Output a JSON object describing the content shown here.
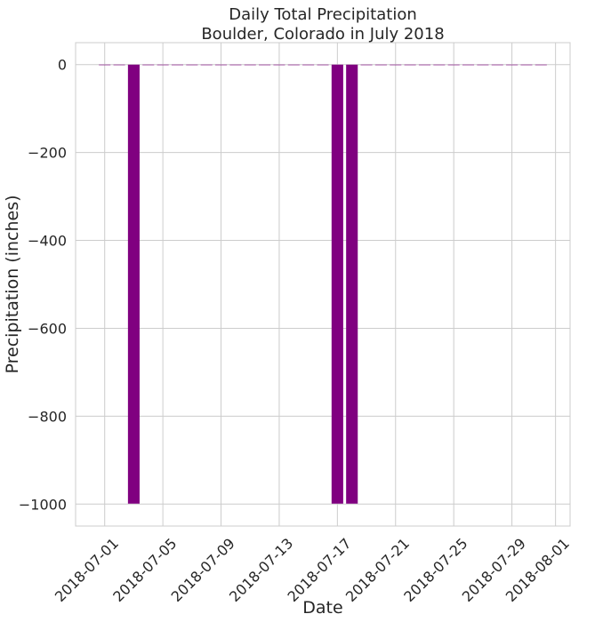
{
  "chart_data": {
    "type": "bar",
    "title": "Daily Total Precipitation\nBoulder, Colorado in July 2018",
    "xlabel": "Date",
    "ylabel": "Precipitation (inches)",
    "ylim": [
      -1050,
      50
    ],
    "xlim": [
      "2018-06-29",
      "2018-08-02"
    ],
    "yticks": [
      0,
      -200,
      -400,
      -600,
      -800,
      -1000
    ],
    "xticks": [
      "2018-07-01",
      "2018-07-05",
      "2018-07-09",
      "2018-07-13",
      "2018-07-17",
      "2018-07-21",
      "2018-07-25",
      "2018-07-29",
      "2018-08-01"
    ],
    "grid": true,
    "bar_color": "#800080",
    "series": [
      {
        "dates": [
          "2018-07-01",
          "2018-07-02",
          "2018-07-03",
          "2018-07-04",
          "2018-07-05",
          "2018-07-06",
          "2018-07-07",
          "2018-07-08",
          "2018-07-09",
          "2018-07-10",
          "2018-07-11",
          "2018-07-12",
          "2018-07-13",
          "2018-07-14",
          "2018-07-15",
          "2018-07-16",
          "2018-07-17",
          "2018-07-18",
          "2018-07-19",
          "2018-07-20",
          "2018-07-21",
          "2018-07-22",
          "2018-07-23",
          "2018-07-24",
          "2018-07-25",
          "2018-07-26",
          "2018-07-27",
          "2018-07-28",
          "2018-07-29",
          "2018-07-30",
          "2018-07-31"
        ],
        "values": [
          0,
          0,
          -999,
          0,
          0,
          0,
          0,
          0,
          0,
          0,
          0,
          0,
          0,
          0,
          0,
          0,
          -999,
          -999,
          0,
          0,
          0,
          0,
          0,
          0,
          0,
          0,
          0,
          0,
          0,
          0,
          0
        ]
      }
    ]
  }
}
